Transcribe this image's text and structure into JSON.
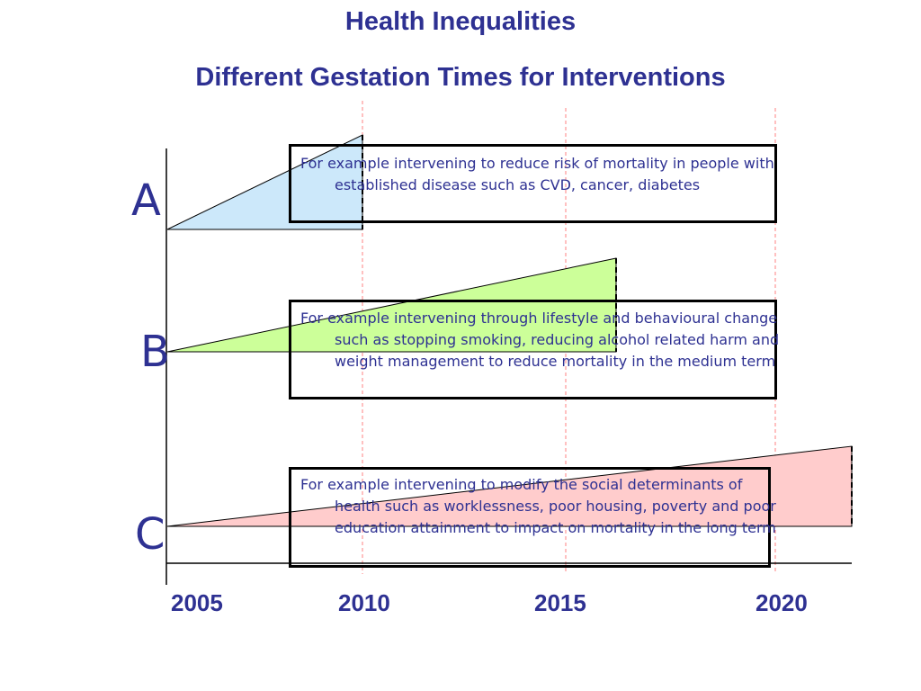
{
  "header": {
    "title": "Health Inequalities",
    "subtitle": "Different Gestation Times for Interventions"
  },
  "rows": [
    {
      "label": "A",
      "text": "For example intervening to reduce risk of mortality in people with established disease such as CVD, cancer, diabetes",
      "fill_color": "#cce8fa",
      "end_year": 2010
    },
    {
      "label": "B",
      "text": "For example intervening through lifestyle and behavioural change such as stopping smoking, reducing alcohol related harm and weight management to reduce mortality in the medium term",
      "fill_color": "#ccff99",
      "end_year": 2016.3
    },
    {
      "label": "C",
      "text": "For example intervening to modify the social determinants of health such as worklessness, poor housing, poverty and poor education attainment to impact on mortality in the long term",
      "fill_color": "#ffcccc",
      "end_year": 2022.3
    }
  ],
  "years": [
    "2005",
    "2010",
    "2015",
    "2020"
  ],
  "colors": {
    "title_text": "#2e3192",
    "guide_line": "#ff8080",
    "box_border": "#000000"
  }
}
